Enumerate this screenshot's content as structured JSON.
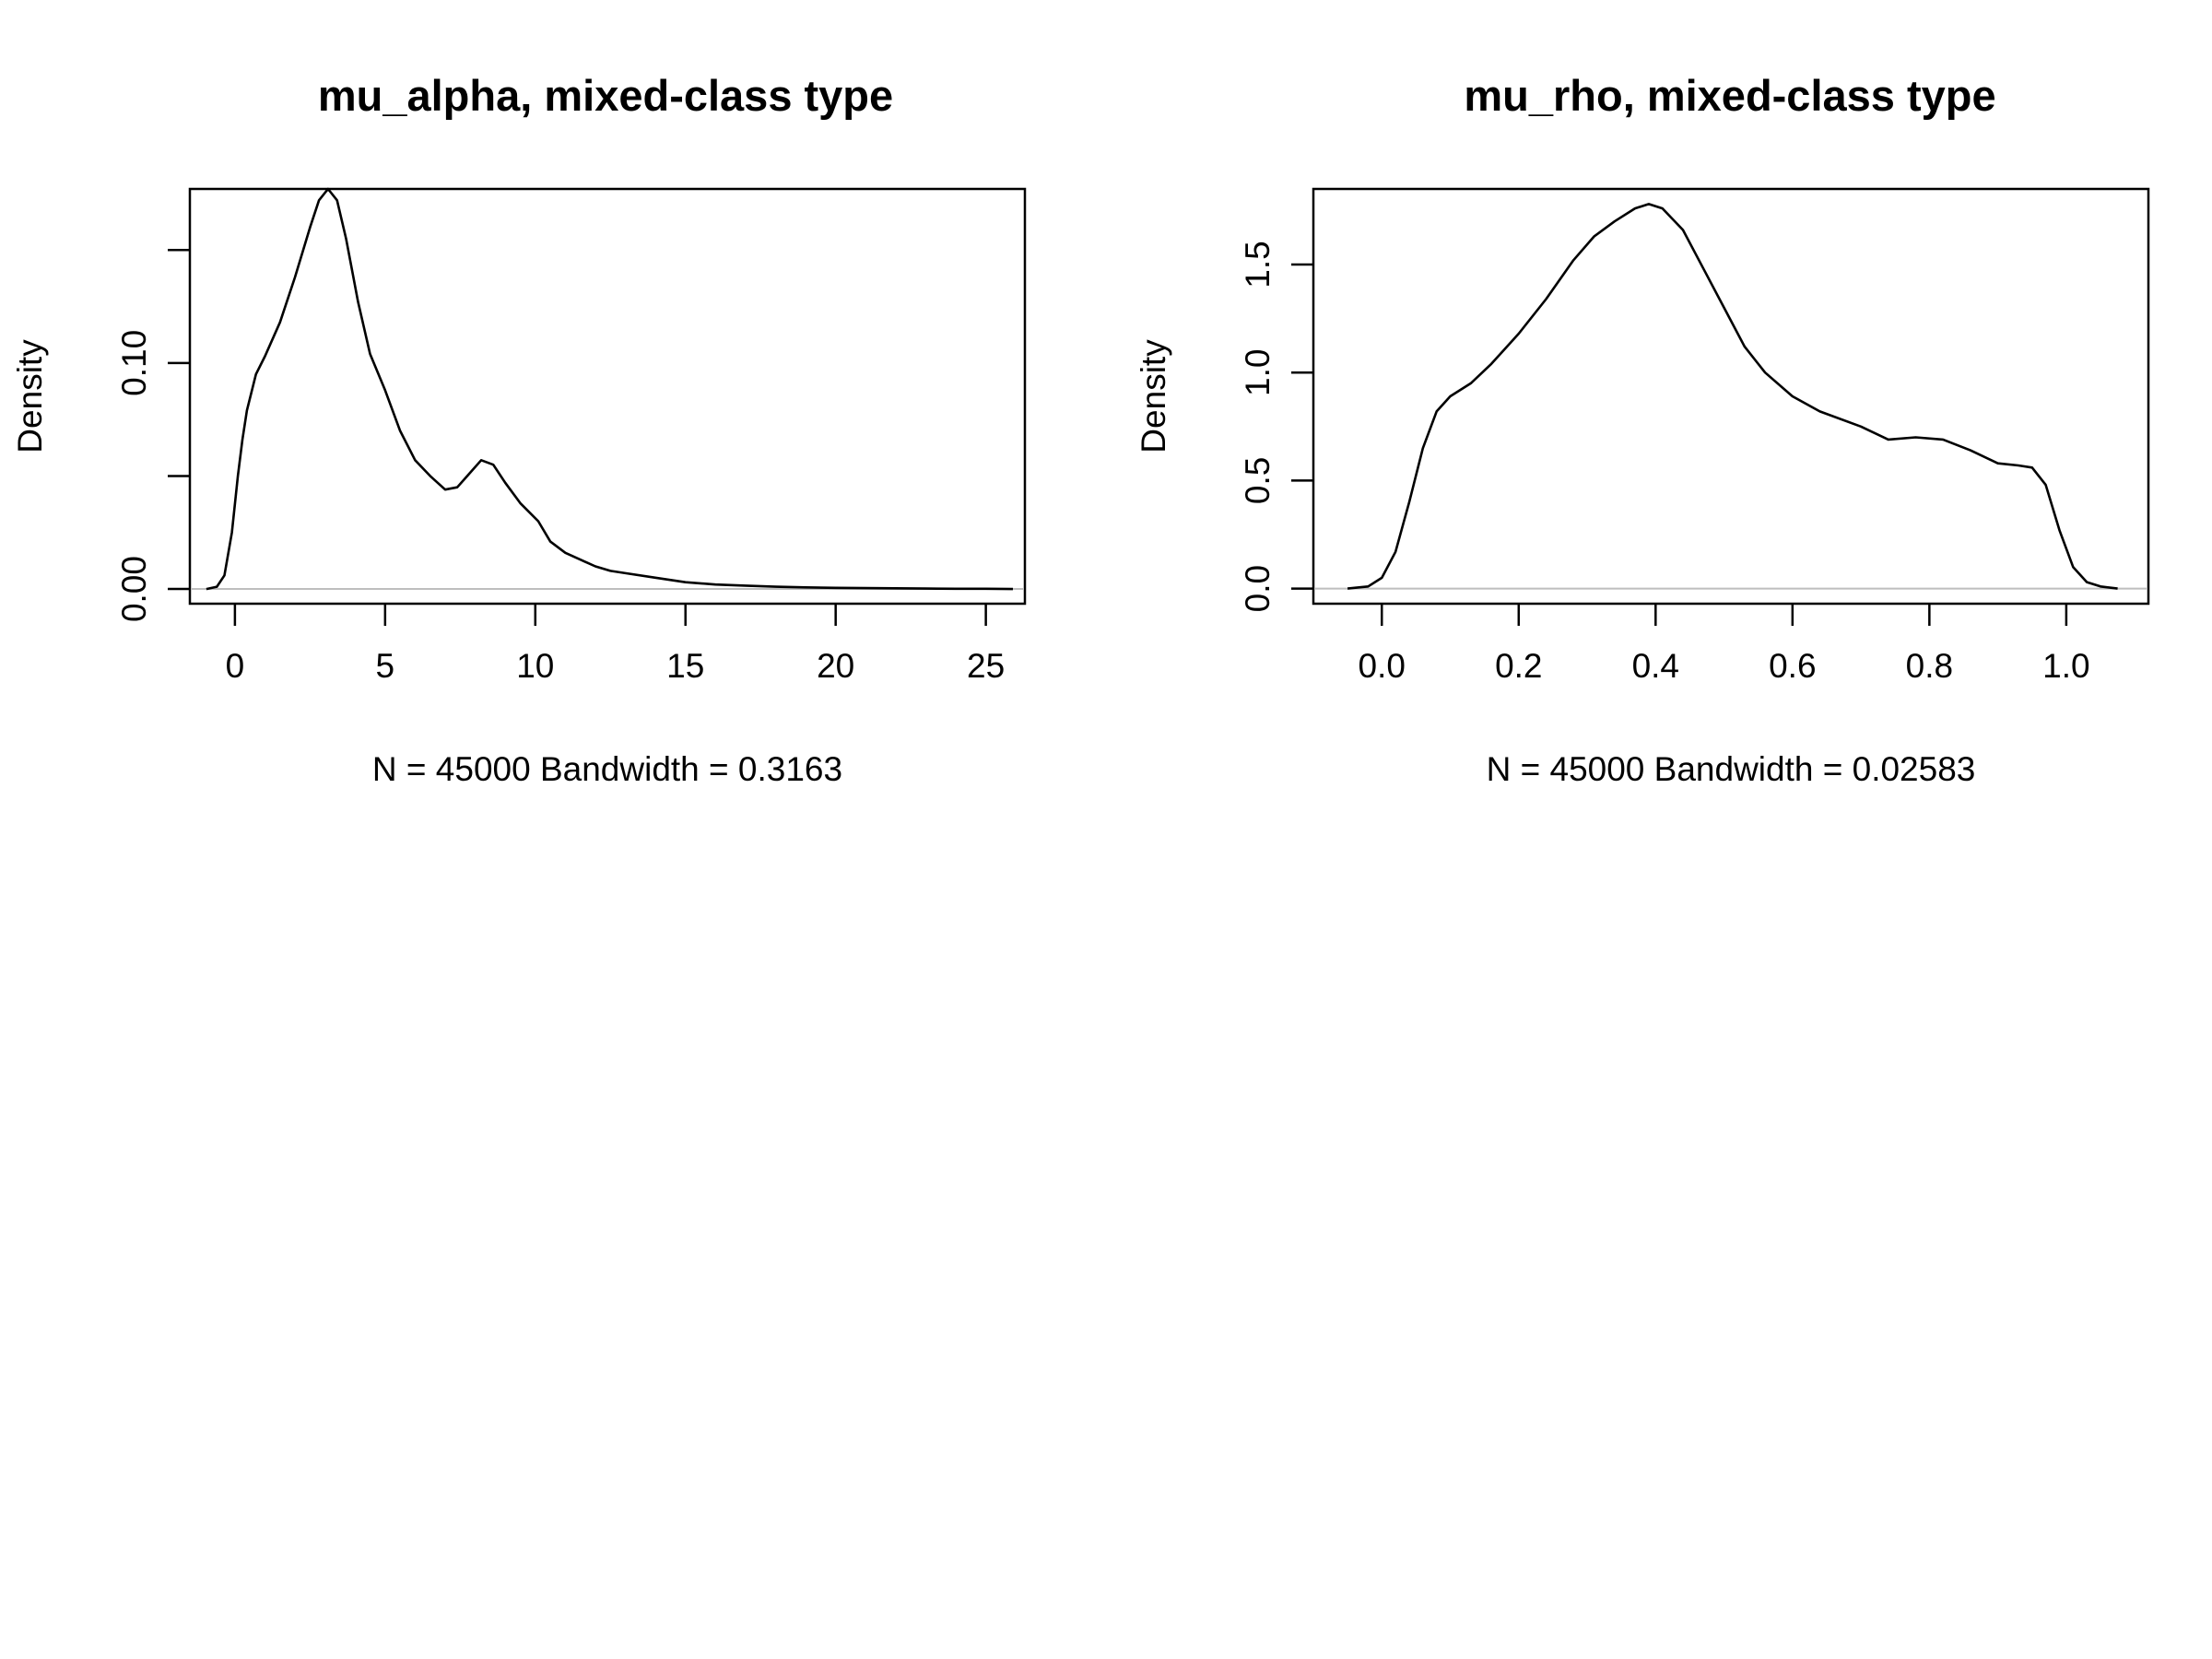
{
  "chart_data": [
    {
      "type": "line",
      "title": "mu_alpha,  mixed-class type",
      "xlabel": "N = 45000   Bandwidth = 0.3163",
      "ylabel": "Density",
      "xlim": [
        -1.5,
        26.3
      ],
      "ylim": [
        -0.0065,
        0.177
      ],
      "x_ticks": [
        0,
        5,
        10,
        15,
        20,
        25
      ],
      "x_tick_labels": [
        "0",
        "5",
        "10",
        "15",
        "20",
        "25"
      ],
      "y_ticks": [
        0,
        0.05,
        0.1,
        0.15
      ],
      "y_tick_labels": [
        "0.00",
        "",
        "0.10",
        ""
      ],
      "zero_baseline": true,
      "grid": false,
      "series": [
        {
          "x": [
            -0.95,
            -0.6,
            -0.35,
            -0.1,
            0.1,
            0.25,
            0.4,
            0.7,
            1.0,
            1.5,
            2.0,
            2.5,
            2.8,
            3.1,
            3.4,
            3.7,
            4.1,
            4.5,
            5.0,
            5.5,
            6.0,
            6.5,
            7.0,
            7.4,
            7.8,
            8.2,
            8.6,
            9.0,
            9.5,
            10.1,
            10.5,
            11.0,
            11.5,
            12.0,
            12.5,
            13.0,
            14.0,
            15.0,
            16.0,
            17.0,
            18.0,
            19.0,
            20.0,
            21.0,
            22.0,
            23.0,
            24.0,
            25.0,
            25.9
          ],
          "y": [
            0.0,
            0.001,
            0.006,
            0.025,
            0.05,
            0.066,
            0.079,
            0.095,
            0.103,
            0.118,
            0.138,
            0.16,
            0.172,
            0.177,
            0.172,
            0.155,
            0.127,
            0.104,
            0.088,
            0.07,
            0.057,
            0.05,
            0.044,
            0.045,
            0.051,
            0.057,
            0.055,
            0.047,
            0.038,
            0.03,
            0.021,
            0.016,
            0.013,
            0.01,
            0.008,
            0.007,
            0.005,
            0.003,
            0.002,
            0.0015,
            0.001,
            0.0007,
            0.0005,
            0.0004,
            0.0003,
            0.0002,
            0.0001,
            0.0001,
            0.0
          ]
        }
      ]
    },
    {
      "type": "line",
      "title": "mu_rho,  mixed-class type",
      "xlabel": "N = 45000   Bandwidth = 0.02583",
      "ylabel": "Density",
      "xlim": [
        -0.1,
        1.12
      ],
      "ylim": [
        -0.07,
        1.85
      ],
      "x_ticks": [
        0,
        0.2,
        0.4,
        0.6,
        0.8,
        1.0
      ],
      "x_tick_labels": [
        "0.0",
        "0.2",
        "0.4",
        "0.6",
        "0.8",
        "1.0"
      ],
      "y_ticks": [
        0,
        0.5,
        1.0,
        1.5
      ],
      "y_tick_labels": [
        "0.0",
        "0.5",
        "1.0",
        "1.5"
      ],
      "zero_baseline": true,
      "grid": false,
      "series": [
        {
          "x": [
            -0.05,
            -0.02,
            0.0,
            0.02,
            0.04,
            0.06,
            0.08,
            0.1,
            0.13,
            0.16,
            0.2,
            0.24,
            0.28,
            0.31,
            0.34,
            0.37,
            0.39,
            0.41,
            0.44,
            0.47,
            0.5,
            0.53,
            0.56,
            0.6,
            0.64,
            0.7,
            0.74,
            0.78,
            0.82,
            0.86,
            0.9,
            0.93,
            0.95,
            0.97,
            0.99,
            1.01,
            1.03,
            1.05,
            1.075
          ],
          "y": [
            0.0,
            0.01,
            0.05,
            0.17,
            0.4,
            0.65,
            0.82,
            0.89,
            0.95,
            1.04,
            1.18,
            1.34,
            1.52,
            1.63,
            1.7,
            1.76,
            1.78,
            1.76,
            1.66,
            1.48,
            1.3,
            1.12,
            1.0,
            0.89,
            0.82,
            0.75,
            0.69,
            0.7,
            0.69,
            0.64,
            0.58,
            0.57,
            0.56,
            0.48,
            0.27,
            0.1,
            0.03,
            0.01,
            0.0
          ]
        }
      ]
    }
  ]
}
